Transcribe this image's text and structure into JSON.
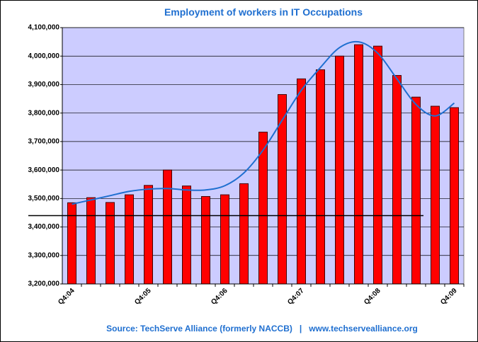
{
  "chart_data": {
    "type": "bar",
    "title": "Employment of workers in IT Occupations",
    "source": "Source: TechServe Alliance (formerly NACCB)   |   www.techservealliance.org",
    "categories": [
      "Q4:04",
      null,
      null,
      null,
      "Q4:05",
      null,
      null,
      null,
      "Q4:06",
      null,
      null,
      null,
      "Q4:07",
      null,
      null,
      null,
      "Q4:08",
      null,
      null,
      null,
      "Q4:09"
    ],
    "values": [
      3485000,
      3503000,
      3486000,
      3513000,
      3546000,
      3600000,
      3544000,
      3507000,
      3513000,
      3552000,
      3733000,
      3865000,
      3920000,
      3952000,
      4000000,
      4040000,
      4035000,
      3932000,
      3856000,
      3824000,
      3819000
    ],
    "color": "#ff0000",
    "trend": {
      "color": "#1f6fd0",
      "values": [
        3480000,
        3495000,
        3510000,
        3525000,
        3533000,
        3535000,
        3530000,
        3530000,
        3545000,
        3590000,
        3670000,
        3775000,
        3880000,
        3960000,
        4030000,
        4050000,
        4010000,
        3920000,
        3830000,
        3790000,
        3835000
      ]
    },
    "reference_line": 3440000,
    "ylim": [
      3200000,
      4100000
    ],
    "yticks": [
      {
        "value": 3200000,
        "label": "3,200,000"
      },
      {
        "value": 3300000,
        "label": "3,300,000"
      },
      {
        "value": 3400000,
        "label": "3,400,000"
      },
      {
        "value": 3500000,
        "label": "3,500,000"
      },
      {
        "value": 3600000,
        "label": "3,600,000"
      },
      {
        "value": 3700000,
        "label": "3,700,000"
      },
      {
        "value": 3800000,
        "label": "3,800,000"
      },
      {
        "value": 3900000,
        "label": "3,900,000"
      },
      {
        "value": 4000000,
        "label": "4,000,000"
      },
      {
        "value": 4100000,
        "label": "4,100,000"
      }
    ],
    "grid": true
  }
}
